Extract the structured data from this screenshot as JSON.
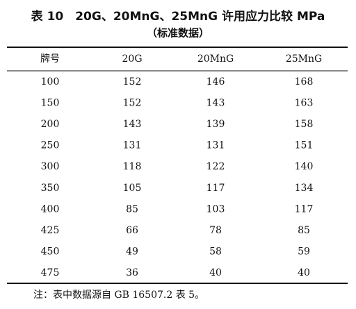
{
  "title": "表 10　20G、20MnG、25MnG 许用应力比较 MPa",
  "subtitle": "（标准数据）",
  "table": {
    "header": [
      "牌号",
      "20G",
      "20MnG",
      "25MnG"
    ],
    "rows": [
      [
        100,
        152,
        146,
        168
      ],
      [
        150,
        152,
        143,
        163
      ],
      [
        200,
        143,
        139,
        158
      ],
      [
        250,
        131,
        131,
        151
      ],
      [
        300,
        118,
        122,
        140
      ],
      [
        350,
        105,
        117,
        134
      ],
      [
        400,
        85,
        103,
        117
      ],
      [
        425,
        66,
        78,
        85
      ],
      [
        450,
        49,
        58,
        59
      ],
      [
        475,
        36,
        40,
        40
      ]
    ]
  },
  "note": "注：表中数据源自 GB 16507.2 表 5。"
}
